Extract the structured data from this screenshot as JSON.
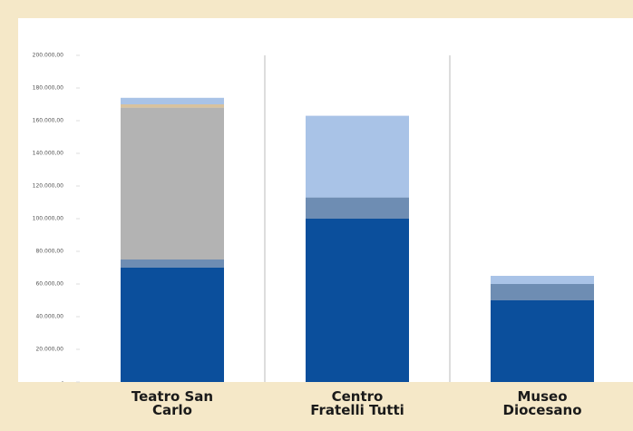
{
  "chart_data": {
    "type": "stacked_bar",
    "categories": [
      "Teatro San Carlo",
      "Centro Fratelli Tutti",
      "Museo Diocesano"
    ],
    "series": [
      {
        "color": "#0b4f9c",
        "values": [
          70000,
          100000,
          50000
        ]
      },
      {
        "color": "#6e8db3",
        "values": [
          5000,
          13000,
          10000
        ]
      },
      {
        "color": "#b3b3b3",
        "values": [
          93000,
          0,
          0
        ]
      },
      {
        "color": "#d8c29e",
        "values": [
          2000,
          0,
          0
        ]
      },
      {
        "color": "#a9c3e7",
        "values": [
          4000,
          50000,
          5000
        ]
      }
    ],
    "ylim": [
      0,
      200000
    ],
    "yticks": [
      {
        "value": 0,
        "label": "-"
      },
      {
        "value": 20000,
        "label": "20.000,00"
      },
      {
        "value": 40000,
        "label": "40.000,00"
      },
      {
        "value": 60000,
        "label": "60.000,00"
      },
      {
        "value": 80000,
        "label": "80.000,00"
      },
      {
        "value": 100000,
        "label": "100.000,00"
      },
      {
        "value": 120000,
        "label": "120.000,00"
      },
      {
        "value": 140000,
        "label": "140.000,00"
      },
      {
        "value": 160000,
        "label": "160.000,00"
      },
      {
        "value": 180000,
        "label": "180.000,00"
      },
      {
        "value": 200000,
        "label": "200.000,00"
      }
    ]
  }
}
